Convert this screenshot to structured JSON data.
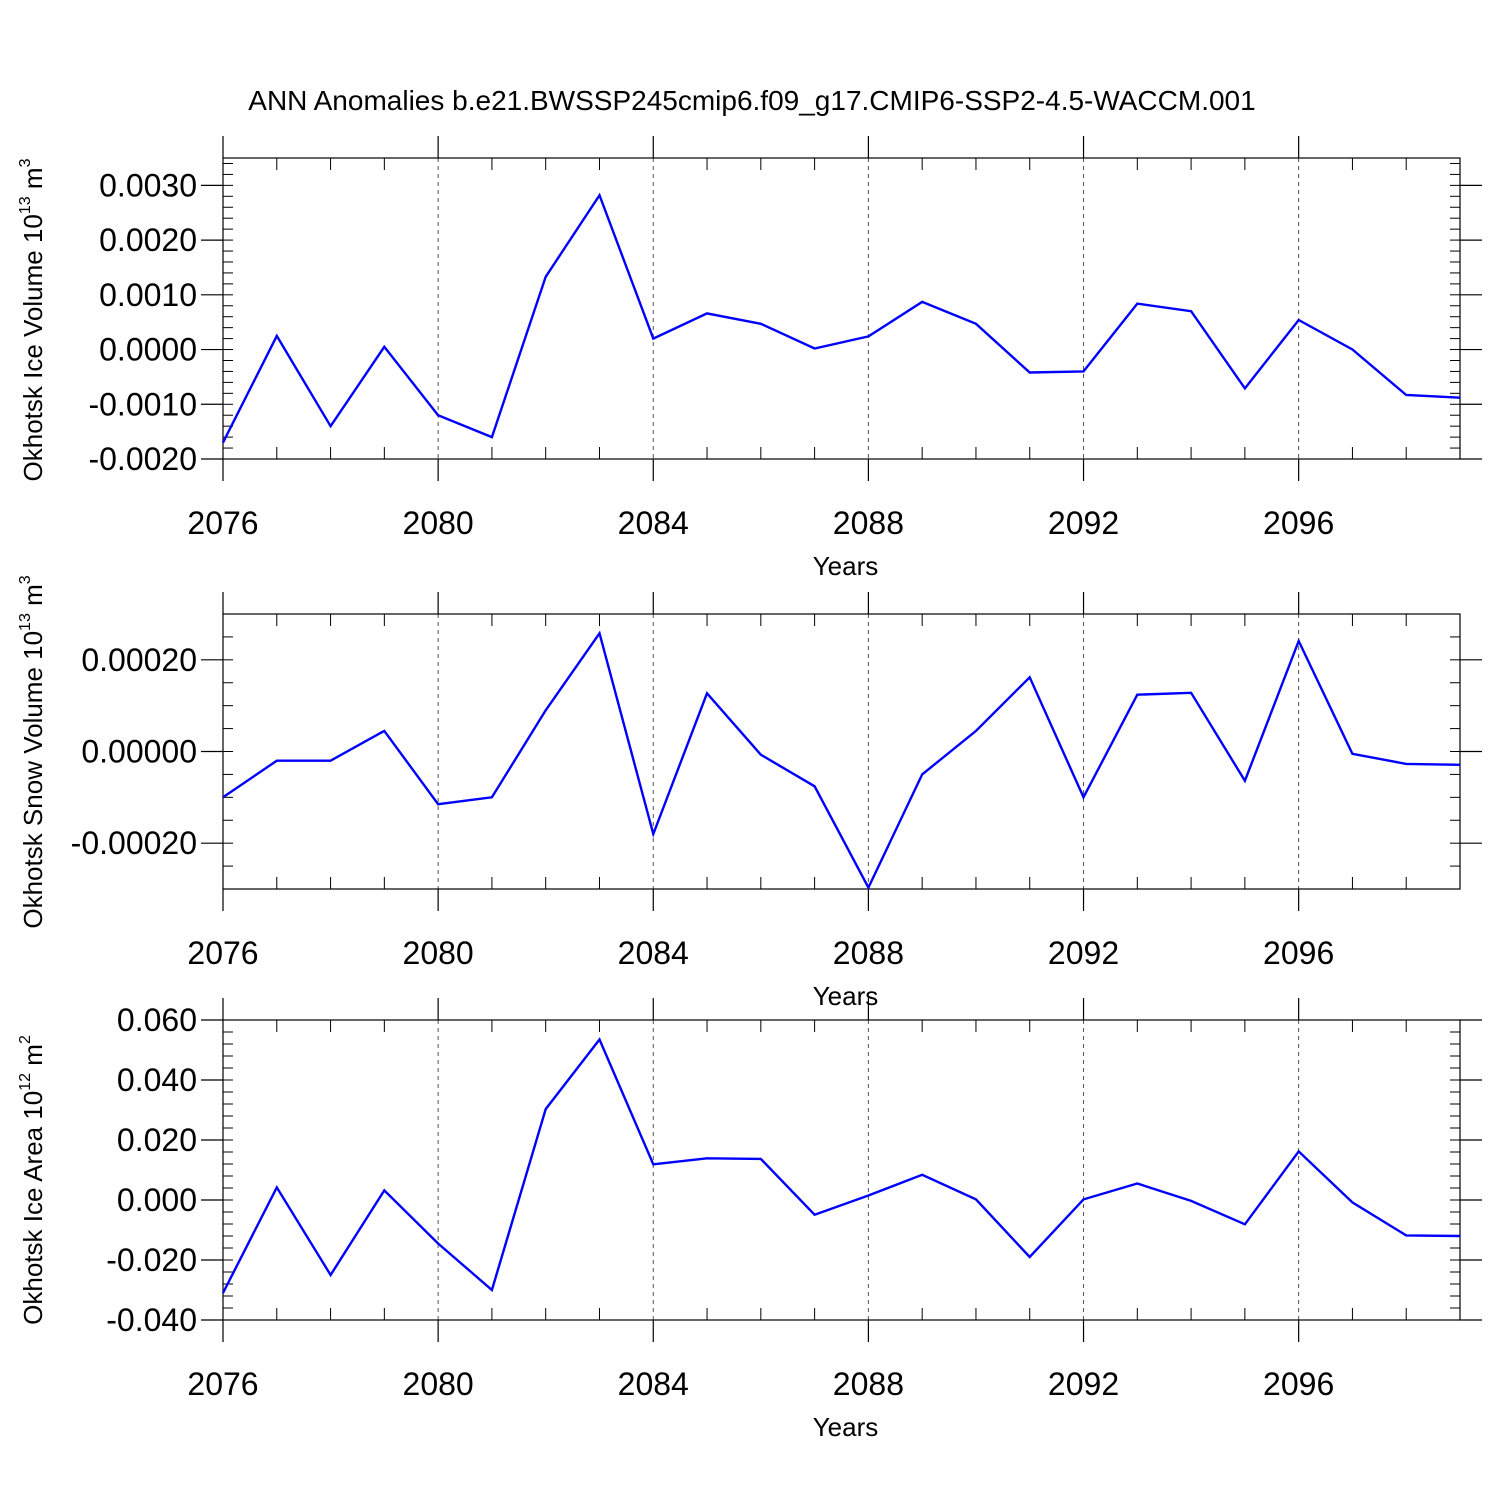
{
  "title": "ANN Anomalies b.e21.BWSSP245cmip6.f09_g17.CMIP6-SSP2-4.5-WACCM.001",
  "line_color": "#0000ff",
  "chart_data": [
    {
      "type": "line",
      "ylabel": "Okhotsk Ice Volume 10",
      "ylabel_exp": "13",
      "ylabel_unit": "m",
      "ylabel_unit_exp": "3",
      "xlabel": "Years",
      "xlim": [
        2076,
        2099
      ],
      "ylim": [
        -0.002,
        0.0035
      ],
      "x_ticks": [
        2076,
        2080,
        2084,
        2088,
        2092,
        2096
      ],
      "x_tick_labels": [
        "2076",
        "2080",
        "2084",
        "2088",
        "2092",
        "2096"
      ],
      "y_ticks": [
        -0.002,
        -0.001,
        0.0,
        0.001,
        0.002,
        0.003
      ],
      "y_tick_labels": [
        "-0.0020",
        "-0.0010",
        "0.0000",
        "0.0010",
        "0.0020",
        "0.0030"
      ],
      "y_minor_step": 0.0002,
      "grid": "vertical dashed at major x ticks",
      "series": [
        {
          "x": [
            2076,
            2077,
            2078,
            2079,
            2080,
            2081,
            2082,
            2083,
            2084,
            2085,
            2086,
            2087,
            2088,
            2089,
            2090,
            2091,
            2092,
            2093,
            2094,
            2095,
            2096,
            2097,
            2098,
            2099
          ],
          "values": [
            -0.0017,
            0.00025,
            -0.0014,
            5e-05,
            -0.0012,
            -0.0016,
            0.00133,
            0.00282,
            0.0002,
            0.00066,
            0.00047,
            2e-05,
            0.00024,
            0.00087,
            0.00047,
            -0.00042,
            -0.0004,
            0.00084,
            0.0007,
            -0.00071,
            0.00054,
            0.0,
            -0.00083,
            -0.00088
          ]
        }
      ]
    },
    {
      "type": "line",
      "ylabel": "Okhotsk Snow Volume 10",
      "ylabel_exp": "13",
      "ylabel_unit": "m",
      "ylabel_unit_exp": "3",
      "xlabel": "Years",
      "xlim": [
        2076,
        2099
      ],
      "ylim": [
        -0.0003,
        0.0003
      ],
      "x_ticks": [
        2076,
        2080,
        2084,
        2088,
        2092,
        2096
      ],
      "x_tick_labels": [
        "2076",
        "2080",
        "2084",
        "2088",
        "2092",
        "2096"
      ],
      "y_ticks": [
        -0.0002,
        0.0,
        0.0002
      ],
      "y_tick_labels": [
        "-0.00020",
        "0.00000",
        "0.00020"
      ],
      "y_minor_step": 5e-05,
      "grid": "vertical dashed at major x ticks",
      "series": [
        {
          "x": [
            2076,
            2077,
            2078,
            2079,
            2080,
            2081,
            2082,
            2083,
            2084,
            2085,
            2086,
            2087,
            2088,
            2089,
            2090,
            2091,
            2092,
            2093,
            2094,
            2095,
            2096,
            2097,
            2098,
            2099
          ],
          "values": [
            -0.0001,
            -2e-05,
            -2e-05,
            4.5e-05,
            -0.000115,
            -0.0001,
            9e-05,
            0.000258,
            -0.00018,
            0.000127,
            -7e-06,
            -7.6e-05,
            -0.000297,
            -5e-05,
            4.5e-05,
            0.000162,
            -0.0001,
            0.000124,
            0.000128,
            -6.4e-05,
            0.000241,
            -5e-06,
            -2.7e-05,
            -2.9e-05
          ]
        }
      ]
    },
    {
      "type": "line",
      "ylabel": "Okhotsk Ice Area 10",
      "ylabel_exp": "12",
      "ylabel_unit": "m",
      "ylabel_unit_exp": "2",
      "xlabel": "Years",
      "xlim": [
        2076,
        2099
      ],
      "ylim": [
        -0.04,
        0.06
      ],
      "x_ticks": [
        2076,
        2080,
        2084,
        2088,
        2092,
        2096
      ],
      "x_tick_labels": [
        "2076",
        "2080",
        "2084",
        "2088",
        "2092",
        "2096"
      ],
      "y_ticks": [
        -0.04,
        -0.02,
        0.0,
        0.02,
        0.04,
        0.06
      ],
      "y_tick_labels": [
        "-0.040",
        "-0.020",
        "0.000",
        "0.020",
        "0.040",
        "0.060"
      ],
      "y_minor_step": 0.004,
      "grid": "vertical dashed at major x ticks",
      "series": [
        {
          "x": [
            2076,
            2077,
            2078,
            2079,
            2080,
            2081,
            2082,
            2083,
            2084,
            2085,
            2086,
            2087,
            2088,
            2089,
            2090,
            2091,
            2092,
            2093,
            2094,
            2095,
            2096,
            2097,
            2098,
            2099
          ],
          "values": [
            -0.031,
            0.0042,
            -0.025,
            0.0032,
            -0.0145,
            -0.03,
            0.0303,
            0.0535,
            0.0119,
            0.0139,
            0.0137,
            -0.0049,
            0.0015,
            0.0084,
            0.0002,
            -0.019,
            0.0002,
            0.0055,
            -0.0003,
            -0.0081,
            0.0162,
            -0.0008,
            -0.0118,
            -0.012
          ]
        }
      ]
    }
  ]
}
